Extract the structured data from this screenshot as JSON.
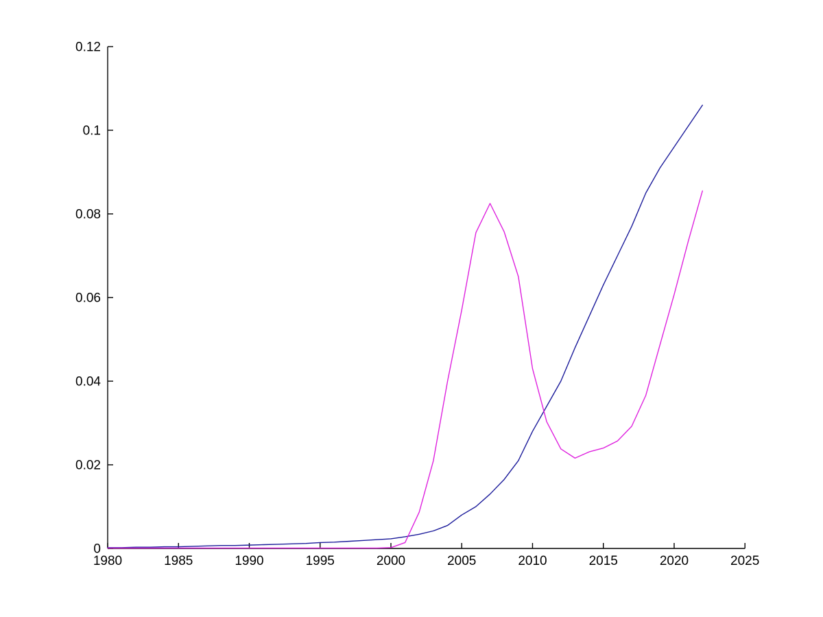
{
  "figure": {
    "background": "#ffffff"
  },
  "chart_data": {
    "type": "line",
    "title": "",
    "xlabel": "",
    "ylabel": "",
    "grid": false,
    "legend": "none",
    "box": false,
    "axis_color": "#000000",
    "xlim": [
      1980,
      2025
    ],
    "ylim": [
      0,
      0.12
    ],
    "x_ticks": [
      1980,
      1985,
      1990,
      1995,
      2000,
      2005,
      2010,
      2015,
      2020,
      2025
    ],
    "x_tick_labels": [
      "1980",
      "1985",
      "1990",
      "1995",
      "2000",
      "2005",
      "2010",
      "2015",
      "2020",
      "2025"
    ],
    "y_ticks": [
      0,
      0.02,
      0.04,
      0.06,
      0.08,
      0.1,
      0.12
    ],
    "y_tick_labels": [
      "0",
      "0.02",
      "0.04",
      "0.06",
      "0.08",
      "0.1",
      "0.12"
    ],
    "x": [
      1980,
      1981,
      1982,
      1983,
      1984,
      1985,
      1986,
      1987,
      1988,
      1989,
      1990,
      1991,
      1992,
      1993,
      1994,
      1995,
      1996,
      1997,
      1998,
      1999,
      2000,
      2001,
      2002,
      2003,
      2004,
      2005,
      2006,
      2007,
      2008,
      2009,
      2010,
      2011,
      2012,
      2013,
      2014,
      2015,
      2016,
      2017,
      2018,
      2019,
      2020,
      2021,
      2022
    ],
    "series": [
      {
        "name": "dark-blue-line",
        "color": "#1a1a9a",
        "values": [
          0.0002,
          0.0002,
          0.0003,
          0.0003,
          0.0004,
          0.0004,
          0.0005,
          0.0006,
          0.0007,
          0.0007,
          0.0008,
          0.0009,
          0.001,
          0.0011,
          0.0012,
          0.0014,
          0.0015,
          0.0017,
          0.0019,
          0.0021,
          0.0023,
          0.0028,
          0.0034,
          0.0042,
          0.0055,
          0.008,
          0.01,
          0.013,
          0.0165,
          0.021,
          0.028,
          0.034,
          0.04,
          0.048,
          0.0555,
          0.063,
          0.07,
          0.077,
          0.085,
          0.091,
          0.096,
          0.101,
          0.106
        ]
      },
      {
        "name": "magenta-line",
        "color": "#de21de",
        "values": [
          0.0001,
          0.0001,
          0.0001,
          0.0001,
          0.0001,
          0.0001,
          0.0001,
          0.0001,
          0.0001,
          0.0001,
          0.0001,
          0.0001,
          0.0001,
          0.0001,
          0.0001,
          0.0001,
          0.0001,
          0.0001,
          0.0001,
          0.0001,
          0.0002,
          0.0014,
          0.0087,
          0.021,
          0.04,
          0.057,
          0.0755,
          0.0825,
          0.0757,
          0.065,
          0.043,
          0.0303,
          0.0238,
          0.0216,
          0.0231,
          0.024,
          0.0257,
          0.0292,
          0.0366,
          0.0487,
          0.0607,
          0.0735,
          0.0855
        ]
      }
    ]
  }
}
